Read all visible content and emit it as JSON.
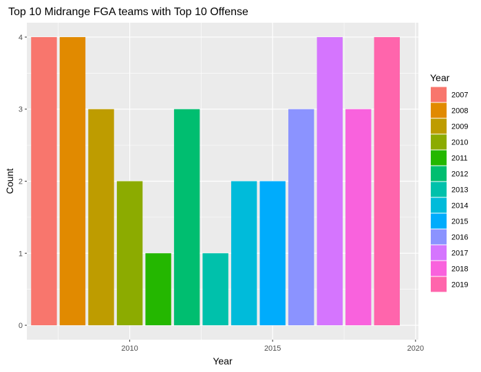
{
  "chart_data": {
    "type": "bar",
    "title": "Top 10 Midrange FGA teams with Top 10 Offense",
    "xlabel": "Year",
    "ylabel": "Count",
    "categories": [
      2007,
      2008,
      2009,
      2010,
      2011,
      2012,
      2013,
      2014,
      2015,
      2016,
      2017,
      2018,
      2019
    ],
    "values": [
      4,
      4,
      3,
      2,
      1,
      3,
      1,
      2,
      2,
      3,
      4,
      3,
      4
    ],
    "colors": [
      "#F8766D",
      "#E18A00",
      "#BE9C00",
      "#8CAB00",
      "#24B700",
      "#00BE70",
      "#00C1AB",
      "#00BBDA",
      "#00ACFC",
      "#8B93FF",
      "#D575FE",
      "#F962DD",
      "#FF65AC"
    ],
    "x_ticks": [
      2010,
      2015,
      2020
    ],
    "y_ticks": [
      0,
      1,
      2,
      3,
      4
    ],
    "xlim": [
      2006.4,
      2020.1
    ],
    "ylim": [
      -0.2,
      4.2
    ],
    "legend": {
      "title": "Year",
      "position": "right",
      "entries": [
        "2007",
        "2008",
        "2009",
        "2010",
        "2011",
        "2012",
        "2013",
        "2014",
        "2015",
        "2016",
        "2017",
        "2018",
        "2019"
      ]
    },
    "grid": true,
    "panel_background": "#EBEBEB"
  }
}
